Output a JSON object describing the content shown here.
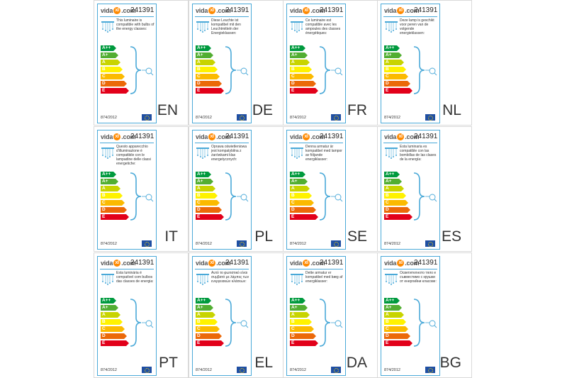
{
  "sku": "241391",
  "brand": {
    "prefix": "vida",
    "dot": "xl",
    "suffix": ".com"
  },
  "regulation": "874/2012",
  "energy_classes": [
    "A++",
    "A+",
    "A",
    "B",
    "C",
    "D",
    "E"
  ],
  "energy_colors": [
    "#009a3e",
    "#52ae32",
    "#c8d400",
    "#fff200",
    "#fbba00",
    "#eb6909",
    "#e2001a"
  ],
  "cells": [
    {
      "lang": "EN",
      "desc": "This luminaire is compatible with bulbs of the energy classes:"
    },
    {
      "lang": "DE",
      "desc": "Diese Leuchte ist kompatibel mit den Leuchtmitteln der Energieklassen:"
    },
    {
      "lang": "FR",
      "desc": "Ce luminaire est compatible avec les ampoules des classes énergétiques:"
    },
    {
      "lang": "NL",
      "desc": "Deze lamp is geschikt voor peren van de volgende energieklassen:"
    },
    {
      "lang": "IT",
      "desc": "Questo apparecchio d'illuminazione è compatibile con le lampadine delle classi energetiche:"
    },
    {
      "lang": "PL",
      "desc": "Oprawa oświetleniowa jest kompatybilna z żarówkami klas energetycznych:"
    },
    {
      "lang": "SE",
      "desc": "Denna armatur är kompatibel med lampor av följande energiklasser:"
    },
    {
      "lang": "ES",
      "desc": "Esta luminaria es compatible con las bombillas de las clases de la energía:"
    },
    {
      "lang": "PT",
      "desc": "Esta luminária é compatível com bulbos das classes de energia:"
    },
    {
      "lang": "EL",
      "desc": "Αυτό το φωτιστικό είναι συμβατό με λάμπες των ενεργειακών κλάσεων:"
    },
    {
      "lang": "DA",
      "desc": "Dette armatur er kompatibel med bæg af energiklasser:"
    },
    {
      "lang": "BG",
      "desc": "Осветителното тяло е съвместимо с крушки от енергийни класове:"
    }
  ]
}
